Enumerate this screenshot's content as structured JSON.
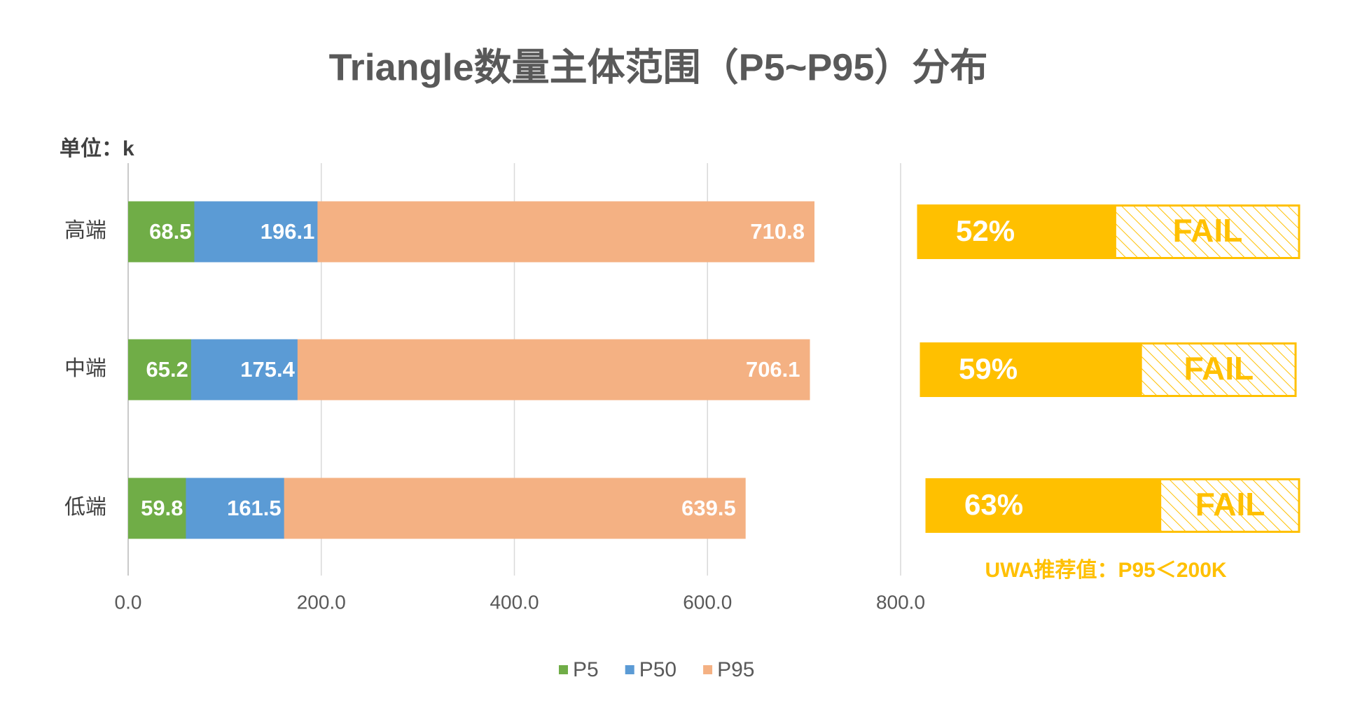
{
  "chart_data": {
    "type": "bar",
    "orientation": "horizontal",
    "title": "Triangle数量主体范围（P5~P95）分布",
    "unit_label": "单位：k",
    "categories": [
      "高端",
      "中端",
      "低端"
    ],
    "series": [
      {
        "name": "P5",
        "color": "#70ad47",
        "values": [
          68.5,
          65.2,
          59.8
        ]
      },
      {
        "name": "P50",
        "color": "#5b9bd5",
        "values": [
          196.1,
          175.4,
          161.5
        ]
      },
      {
        "name": "P95",
        "color": "#f4b183",
        "values": [
          710.8,
          706.1,
          639.5
        ]
      }
    ],
    "xlim": [
      0,
      800
    ],
    "xticks": [
      {
        "value": 0,
        "label": "0.0"
      },
      {
        "value": 200,
        "label": "200.0"
      },
      {
        "value": 400,
        "label": "400.0"
      },
      {
        "value": 600,
        "label": "600.0"
      },
      {
        "value": 800,
        "label": "800.0"
      }
    ],
    "grid": true,
    "legend": "bottom",
    "data_labels": true
  },
  "badges": {
    "color": "#ffc000",
    "items": [
      {
        "value": 52,
        "label": "52%",
        "status": "FAIL"
      },
      {
        "value": 59,
        "label": "59%",
        "status": "FAIL"
      },
      {
        "value": 63,
        "label": "63%",
        "status": "FAIL"
      }
    ],
    "note": "UWA推荐值：P95＜200K"
  }
}
